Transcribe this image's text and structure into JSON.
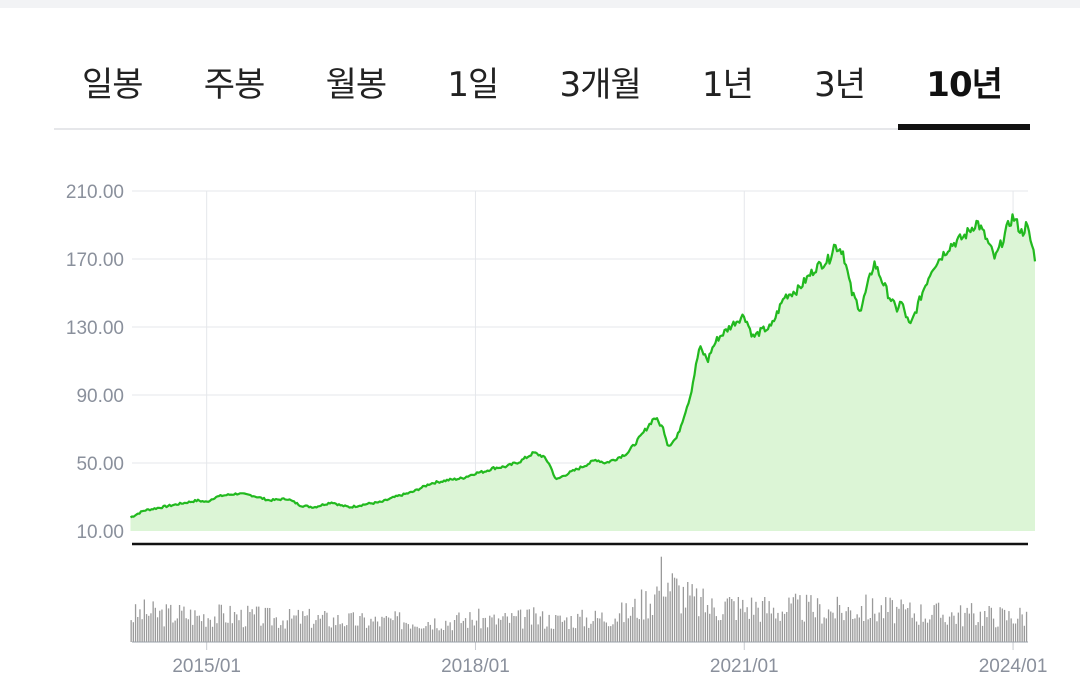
{
  "tabs": [
    {
      "label": "일봉",
      "active": false
    },
    {
      "label": "주봉",
      "active": false
    },
    {
      "label": "월봉",
      "active": false
    },
    {
      "label": "1일",
      "active": false
    },
    {
      "label": "3개월",
      "active": false
    },
    {
      "label": "1년",
      "active": false
    },
    {
      "label": "3년",
      "active": false
    },
    {
      "label": "10년",
      "active": true
    }
  ],
  "colors": {
    "line": "#22b91f",
    "area": "#dcf5d6",
    "volume": "#9a9a9a",
    "grid": "#e5e7eb",
    "axis": "#111111"
  },
  "chart_data": [
    {
      "type": "area",
      "y_ticks": [
        "210.00",
        "170.00",
        "130.00",
        "90.00",
        "50.00",
        "10.00"
      ],
      "ylim": [
        10,
        210
      ],
      "x_ticks": [
        "2015/01",
        "2018/01",
        "2021/01",
        "2024/01"
      ],
      "xlim": [
        "2014/03",
        "2024/03"
      ],
      "x": [
        2014.15,
        2014.3,
        2014.5,
        2014.7,
        2014.9,
        2015.0,
        2015.1,
        2015.2,
        2015.35,
        2015.5,
        2015.7,
        2015.9,
        2016.05,
        2016.2,
        2016.4,
        2016.5,
        2016.6,
        2016.8,
        2016.95,
        2017.1,
        2017.3,
        2017.5,
        2017.7,
        2017.85,
        2018.0,
        2018.1,
        2018.2,
        2018.35,
        2018.5,
        2018.65,
        2018.75,
        2018.82,
        2018.9,
        2019.0,
        2019.2,
        2019.35,
        2019.45,
        2019.55,
        2019.7,
        2019.85,
        2020.0,
        2020.1,
        2020.15,
        2020.25,
        2020.4,
        2020.5,
        2020.6,
        2020.62,
        2020.7,
        2020.8,
        2020.9,
        2021.0,
        2021.1,
        2021.2,
        2021.3,
        2021.45,
        2021.6,
        2021.8,
        2021.95,
        2022.0,
        2022.1,
        2022.2,
        2022.3,
        2022.45,
        2022.6,
        2022.7,
        2022.75,
        2022.85,
        2023.0,
        2023.1,
        2023.3,
        2023.45,
        2023.6,
        2023.7,
        2023.8,
        2023.95,
        2024.0,
        2024.1,
        2024.15,
        2024.25
      ],
      "y": [
        18,
        22,
        24,
        26,
        28,
        27,
        30,
        31,
        32,
        31,
        28,
        29,
        25,
        24,
        27,
        25,
        24,
        26,
        27,
        30,
        33,
        38,
        40,
        41,
        44,
        45,
        47,
        48,
        51,
        56,
        54,
        50,
        40,
        43,
        48,
        52,
        50,
        52,
        56,
        66,
        77,
        70,
        60,
        65,
        90,
        118,
        110,
        115,
        123,
        128,
        133,
        137,
        124,
        128,
        130,
        148,
        152,
        165,
        170,
        178,
        175,
        150,
        140,
        168,
        150,
        140,
        145,
        130,
        152,
        165,
        178,
        183,
        192,
        182,
        170,
        190,
        195,
        185,
        190,
        170
      ],
      "volume": [
        0.3,
        0.35,
        0.32,
        0.33,
        0.3,
        0.31,
        0.31,
        0.32,
        0.3,
        0.3,
        0.28,
        0.27,
        0.28,
        0.27,
        0.26,
        0.26,
        0.25,
        0.24,
        0.24,
        0.25,
        0.25,
        0.25,
        0.24,
        0.26,
        0.27,
        0.26,
        0.25,
        0.26,
        0.27,
        0.28,
        0.27,
        0.26,
        0.25,
        0.26,
        0.27,
        0.28,
        0.3,
        0.32,
        0.34,
        0.45,
        0.55,
        0.85,
        0.7,
        0.6,
        0.5,
        0.45,
        0.42,
        0.4,
        0.4,
        0.45,
        0.42,
        0.4,
        0.42,
        0.4,
        0.38,
        0.38,
        0.4,
        0.38,
        0.36,
        0.37,
        0.36,
        0.38,
        0.4,
        0.37,
        0.38,
        0.36,
        0.34,
        0.35,
        0.34,
        0.33,
        0.32,
        0.32,
        0.32,
        0.31,
        0.31,
        0.3,
        0.31,
        0.31,
        0.3,
        0.32
      ]
    }
  ]
}
